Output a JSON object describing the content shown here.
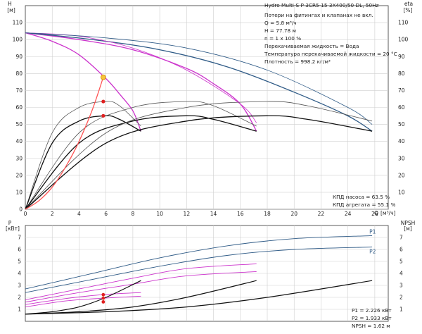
{
  "chart_data": [
    {
      "type": "line",
      "name": "head-efficiency",
      "ylabel_left": "H",
      "ylabel_left_unit": "[м]",
      "ylabel_right": "eta",
      "ylabel_right_unit": "[%]",
      "xlabel": "Q",
      "xunit": "[м³/ч]",
      "xlim": [
        0,
        27
      ],
      "ylim": [
        0,
        120
      ],
      "x_ticks": [
        0,
        2,
        4,
        6,
        8,
        10,
        12,
        14,
        16,
        18,
        20,
        22,
        24,
        26
      ],
      "y_ticks": [
        0,
        10,
        20,
        30,
        40,
        50,
        60,
        70,
        80,
        90,
        100,
        110
      ],
      "grid": true,
      "series": [
        {
          "role": "head-1-pump",
          "color": "#cc33cc",
          "x": [
            0,
            2,
            4,
            6,
            7,
            8,
            8.6
          ],
          "y": [
            104,
            99,
            91,
            77,
            68,
            58,
            46
          ]
        },
        {
          "role": "head-2-pumps",
          "color": "#cc33cc",
          "x": [
            0,
            4,
            8,
            12,
            14,
            16,
            17.2
          ],
          "y": [
            104,
            100,
            94,
            83,
            74,
            62,
            46
          ]
        },
        {
          "role": "head-3-pumps",
          "color": "#2e5a86",
          "x": [
            0,
            5,
            10,
            15,
            20,
            24,
            25.8
          ],
          "y": [
            104,
            100,
            94,
            84,
            69,
            55,
            46
          ]
        },
        {
          "role": "head-limit-thin",
          "color": "#cc33cc",
          "x": [
            0,
            4,
            8,
            12,
            16,
            17.2
          ],
          "y": [
            104,
            102,
            95,
            82,
            62,
            51
          ]
        },
        {
          "role": "head-limit-thin-3",
          "color": "#2e5a86",
          "x": [
            0,
            6,
            12,
            18,
            24,
            25.8
          ],
          "y": [
            104,
            101,
            95,
            82,
            60,
            50
          ]
        },
        {
          "role": "pump-eff-1",
          "color": "#555555",
          "x": [
            0,
            2,
            4,
            6,
            7,
            8.6
          ],
          "y": [
            0,
            45,
            60,
            63.5,
            61,
            49
          ]
        },
        {
          "role": "unit-eff-1",
          "color": "#111111",
          "x": [
            0,
            2,
            4,
            6,
            7,
            8.6
          ],
          "y": [
            0,
            39,
            52,
            55.1,
            53,
            46
          ]
        },
        {
          "role": "pump-eff-2",
          "color": "#555555",
          "x": [
            0,
            4,
            8,
            12,
            14,
            17.2
          ],
          "y": [
            0,
            45,
            60,
            63.5,
            61,
            49
          ]
        },
        {
          "role": "unit-eff-2",
          "color": "#111111",
          "x": [
            0,
            4,
            8,
            12,
            14,
            17.2
          ],
          "y": [
            0,
            39,
            52,
            55.1,
            53,
            46
          ]
        },
        {
          "role": "pump-eff-3",
          "color": "#555555",
          "x": [
            0,
            6,
            12,
            18,
            21,
            25.8
          ],
          "y": [
            0,
            45,
            60,
            63.5,
            61,
            52
          ]
        },
        {
          "role": "unit-eff-3",
          "color": "#111111",
          "x": [
            0,
            6,
            12,
            18,
            21,
            25.8
          ],
          "y": [
            0,
            39,
            52,
            55.1,
            53,
            46
          ]
        },
        {
          "role": "system-curve",
          "color": "#ff5555",
          "x": [
            0,
            1,
            2,
            3,
            4,
            5,
            5.8
          ],
          "y": [
            0,
            5,
            13,
            25,
            40,
            59,
            77.8
          ]
        }
      ],
      "points": [
        {
          "role": "duty-point",
          "x": 5.8,
          "y": 77.78,
          "color": "#f7c33a"
        },
        {
          "role": "eta-pump-point",
          "x": 5.8,
          "y": 63.5,
          "color": "#e02020"
        },
        {
          "role": "eta-unit-point",
          "x": 5.8,
          "y": 55.1,
          "color": "#e02020"
        }
      ],
      "info_lines": [
        "Потери на фитингах и клапанах не вкл.",
        "Q = 5.8 м³/ч",
        "H = 77.78 м",
        "n = 1 x 100 %",
        "Перекачиваемая жидкость = Вода",
        "Температура перекачиваемой жидкости = 20 °C",
        "Плотность = 998.2 кг/м³"
      ],
      "eff_lines": [
        "КПД насоса = 63.5 %",
        "КПД агрегата = 55.1 %"
      ]
    },
    {
      "type": "line",
      "name": "power-npsh",
      "ylabel_left": "P",
      "ylabel_left_unit": "[кВт]",
      "ylabel_right": "NPSH",
      "ylabel_right_unit": "[м]",
      "xlim": [
        0,
        27
      ],
      "ylim": [
        0,
        8
      ],
      "y_ticks": [
        1,
        2,
        3,
        4,
        5,
        6,
        7
      ],
      "grid": true,
      "series": [
        {
          "role": "P1-3pumps",
          "name": "P1",
          "color": "#2e5a86",
          "x": [
            0,
            5,
            10,
            15,
            20,
            25.8
          ],
          "y": [
            2.7,
            4.0,
            5.3,
            6.3,
            6.9,
            7.15
          ]
        },
        {
          "role": "P2-3pumps",
          "name": "P2",
          "color": "#2e5a86",
          "x": [
            0,
            5,
            10,
            15,
            20,
            25.8
          ],
          "y": [
            2.4,
            3.5,
            4.6,
            5.5,
            6.0,
            6.2
          ]
        },
        {
          "role": "P1-2pumps",
          "color": "#cc33cc",
          "x": [
            0,
            4,
            8,
            12,
            17.2
          ],
          "y": [
            1.8,
            2.7,
            3.6,
            4.4,
            4.8
          ]
        },
        {
          "role": "P2-2pumps",
          "color": "#cc33cc",
          "x": [
            0,
            4,
            8,
            12,
            17.2
          ],
          "y": [
            1.6,
            2.4,
            3.1,
            3.8,
            4.15
          ]
        },
        {
          "role": "P1-1pump",
          "color": "#cc33cc",
          "x": [
            0,
            3,
            5.8,
            8.6
          ],
          "y": [
            1.4,
            1.9,
            2.23,
            2.4
          ]
        },
        {
          "role": "P2-1pump",
          "color": "#cc33cc",
          "x": [
            0,
            3,
            5.8,
            8.6
          ],
          "y": [
            1.2,
            1.7,
            1.93,
            2.1
          ]
        },
        {
          "role": "NPSH-1",
          "color": "#111111",
          "x": [
            0,
            2,
            4,
            6,
            8.6
          ],
          "y": [
            0.6,
            0.8,
            1.2,
            2.0,
            3.4
          ]
        },
        {
          "role": "NPSH-2",
          "color": "#111111",
          "x": [
            0,
            4,
            8,
            12,
            17.2
          ],
          "y": [
            0.6,
            0.8,
            1.2,
            2.0,
            3.4
          ]
        },
        {
          "role": "NPSH-3",
          "color": "#111111",
          "x": [
            0,
            6,
            12,
            18,
            25.8
          ],
          "y": [
            0.6,
            0.8,
            1.2,
            2.0,
            3.4
          ]
        }
      ],
      "points": [
        {
          "role": "P1-point",
          "x": 5.8,
          "y": 2.226,
          "color": "#e02020"
        },
        {
          "role": "P2-point",
          "x": 5.8,
          "y": 1.933,
          "color": "#e02020"
        },
        {
          "role": "NPSH-point",
          "x": 5.8,
          "y": 1.62,
          "color": "#e02020"
        }
      ],
      "info_lines": [
        "P1 = 2.226 кВт",
        "P2 = 1.933 кВт",
        "NPSH = 1.62 м"
      ]
    }
  ],
  "title": "Hydro Multi-S P 3CR5-15 3X400/50 DL, 50Hz"
}
